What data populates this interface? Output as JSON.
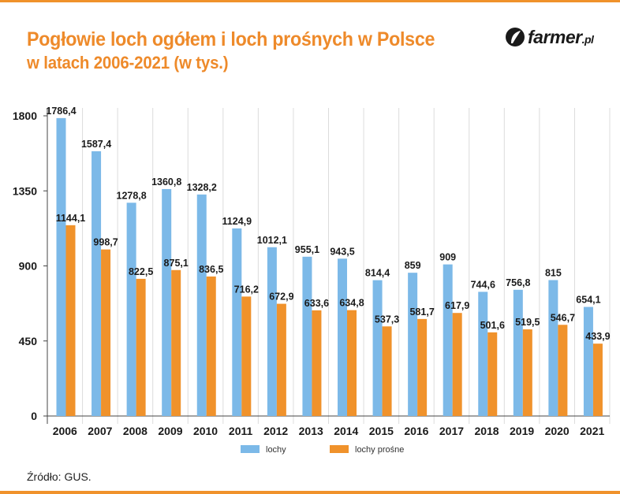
{
  "title": "Pogłowie loch ogółem i loch prośnych w Polsce",
  "subtitle": "w latach 2006-2021 (w tys.)",
  "logo": {
    "text": "farmer",
    "suffix": ".pl"
  },
  "source": "Źródło: GUS.",
  "colors": {
    "accent": "#f0922b",
    "lochy": "#7cb9e8",
    "lochy_prosne": "#f0922b"
  },
  "chart_data": {
    "type": "bar",
    "categories": [
      "2006",
      "2007",
      "2008",
      "2009",
      "2010",
      "2011",
      "2012",
      "2013",
      "2014",
      "2015",
      "2016",
      "2017",
      "2018",
      "2019",
      "2020",
      "2021"
    ],
    "series": [
      {
        "name": "lochy",
        "color": "#7cb9e8",
        "values": [
          1786.4,
          1587.4,
          1278.8,
          1360.8,
          1328.2,
          1124.9,
          1012.1,
          955.1,
          943.5,
          814.4,
          859,
          909,
          744.6,
          756.8,
          815,
          654.1
        ],
        "labels": [
          "1786,4",
          "1587,4",
          "1278,8",
          "1360,8",
          "1328,2",
          "1124,9",
          "1012,1",
          "955,1",
          "943,5",
          "814,4",
          "859",
          "909",
          "744,6",
          "756,8",
          "815",
          "654,1"
        ]
      },
      {
        "name": "lochy prośne",
        "color": "#f0922b",
        "values": [
          1144.1,
          998.7,
          822.5,
          875.1,
          836.5,
          716.2,
          672.9,
          633.6,
          634.8,
          537.3,
          581.7,
          617.9,
          501.6,
          519.5,
          546.7,
          433.9
        ],
        "labels": [
          "1144,1",
          "998,7",
          "822,5",
          "875,1",
          "836,5",
          "716,2",
          "672,9",
          "633,6",
          "634,8",
          "537,3",
          "581,7",
          "617,9",
          "501,6",
          "519,5",
          "546,7",
          "433,9"
        ]
      }
    ],
    "yticks": [
      "0",
      "450",
      "900",
      "1350",
      "1800"
    ],
    "ylim": [
      0,
      1800
    ],
    "legend_position": "bottom",
    "grid": "vertical"
  }
}
